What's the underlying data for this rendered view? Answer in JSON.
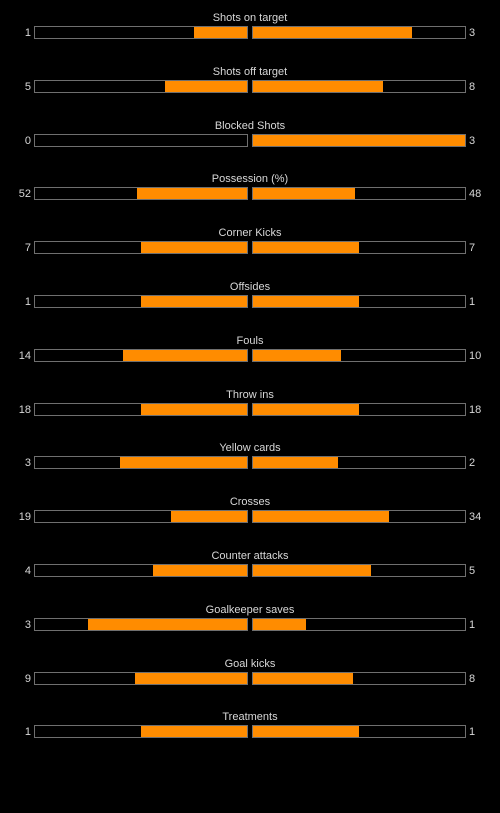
{
  "accent_color": "#ff8c00",
  "stats": [
    {
      "label": "Shots on target",
      "home": "1",
      "away": "3",
      "home_share": 0.25,
      "away_share": 0.75
    },
    {
      "label": "Shots off target",
      "home": "5",
      "away": "8",
      "home_share": 0.3846,
      "away_share": 0.6154
    },
    {
      "label": "Blocked Shots",
      "home": "0",
      "away": "3",
      "home_share": 0.0,
      "away_share": 1.0
    },
    {
      "label": "Possession (%)",
      "home": "52",
      "away": "48",
      "home_share": 0.52,
      "away_share": 0.48
    },
    {
      "label": "Corner Kicks",
      "home": "7",
      "away": "7",
      "home_share": 0.5,
      "away_share": 0.5
    },
    {
      "label": "Offsides",
      "home": "1",
      "away": "1",
      "home_share": 0.5,
      "away_share": 0.5
    },
    {
      "label": "Fouls",
      "home": "14",
      "away": "10",
      "home_share": 0.5833,
      "away_share": 0.4167
    },
    {
      "label": "Throw ins",
      "home": "18",
      "away": "18",
      "home_share": 0.5,
      "away_share": 0.5
    },
    {
      "label": "Yellow cards",
      "home": "3",
      "away": "2",
      "home_share": 0.6,
      "away_share": 0.4
    },
    {
      "label": "Crosses",
      "home": "19",
      "away": "34",
      "home_share": 0.3585,
      "away_share": 0.6415
    },
    {
      "label": "Counter attacks",
      "home": "4",
      "away": "5",
      "home_share": 0.4444,
      "away_share": 0.5556
    },
    {
      "label": "Goalkeeper saves",
      "home": "3",
      "away": "1",
      "home_share": 0.75,
      "away_share": 0.25
    },
    {
      "label": "Goal kicks",
      "home": "9",
      "away": "8",
      "home_share": 0.5294,
      "away_share": 0.4706
    },
    {
      "label": "Treatments",
      "home": "1",
      "away": "1",
      "home_share": 0.5,
      "away_share": 0.5
    }
  ]
}
